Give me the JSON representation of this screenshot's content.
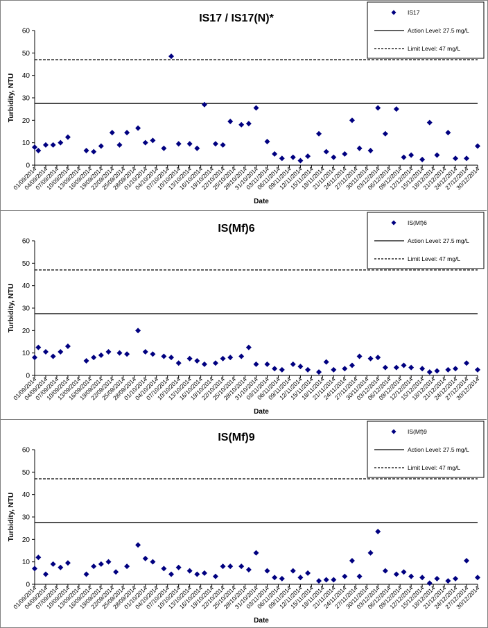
{
  "chart_data": [
    {
      "type": "scatter",
      "title": "IS17 / IS17(N)*",
      "xlabel": "Date",
      "ylabel": "Turbidity, NTU",
      "ylim": [
        0,
        60
      ],
      "yticks": [
        0,
        10,
        20,
        30,
        40,
        50,
        60
      ],
      "xlim": [
        "01/09/2014",
        "30/12/2014"
      ],
      "xticks": [
        "01/09/2014",
        "04/09/2014",
        "07/09/2014",
        "10/09/2014",
        "13/09/2014",
        "16/09/2014",
        "19/09/2014",
        "22/09/2014",
        "25/09/2014",
        "28/09/2014",
        "01/10/2014",
        "04/10/2014",
        "07/10/2014",
        "10/10/2014",
        "13/10/2014",
        "16/10/2014",
        "19/10/2014",
        "22/10/2014",
        "25/10/2014",
        "28/10/2014",
        "31/10/2014",
        "03/11/2014",
        "06/11/2014",
        "09/11/2014",
        "12/11/2014",
        "15/11/2014",
        "18/11/2014",
        "21/11/2014",
        "24/11/2014",
        "27/11/2014",
        "30/11/2014",
        "03/12/2014",
        "06/12/2014",
        "09/12/2014",
        "12/12/2014",
        "15/12/2014",
        "18/12/2014",
        "21/12/2014",
        "24/12/2014",
        "27/12/2014",
        "30/12/2014"
      ],
      "grid": false,
      "legend_position": "top-right",
      "series": [
        {
          "name": "IS17",
          "marker": "diamond",
          "color": "#000080",
          "points": [
            [
              "01/09/2014",
              8
            ],
            [
              "02/09/2014",
              6.5
            ],
            [
              "04/09/2014",
              9
            ],
            [
              "06/09/2014",
              9
            ],
            [
              "08/09/2014",
              10
            ],
            [
              "10/09/2014",
              12.5
            ],
            [
              "15/09/2014",
              6.5
            ],
            [
              "17/09/2014",
              6
            ],
            [
              "19/09/2014",
              8.5
            ],
            [
              "22/09/2014",
              14.5
            ],
            [
              "24/09/2014",
              9
            ],
            [
              "26/09/2014",
              14.5
            ],
            [
              "29/09/2014",
              16.5
            ],
            [
              "01/10/2014",
              10
            ],
            [
              "03/10/2014",
              11
            ],
            [
              "06/10/2014",
              7.5
            ],
            [
              "08/10/2014",
              48.5
            ],
            [
              "10/10/2014",
              9.5
            ],
            [
              "13/10/2014",
              9.5
            ],
            [
              "15/10/2014",
              7.5
            ],
            [
              "17/10/2014",
              27
            ],
            [
              "20/10/2014",
              9.5
            ],
            [
              "22/10/2014",
              9
            ],
            [
              "24/10/2014",
              19.5
            ],
            [
              "27/10/2014",
              18
            ],
            [
              "29/10/2014",
              18.5
            ],
            [
              "31/10/2014",
              25.5
            ],
            [
              "03/11/2014",
              10.5
            ],
            [
              "05/11/2014",
              5
            ],
            [
              "07/11/2014",
              3
            ],
            [
              "10/11/2014",
              3.5
            ],
            [
              "12/11/2014",
              2
            ],
            [
              "14/11/2014",
              4
            ],
            [
              "17/11/2014",
              14
            ],
            [
              "19/11/2014",
              6
            ],
            [
              "21/11/2014",
              3.5
            ],
            [
              "24/11/2014",
              5
            ],
            [
              "26/11/2014",
              20
            ],
            [
              "28/11/2014",
              7.5
            ],
            [
              "01/12/2014",
              6.5
            ],
            [
              "03/12/2014",
              25.5
            ],
            [
              "05/12/2014",
              14
            ],
            [
              "08/12/2014",
              25
            ],
            [
              "10/12/2014",
              3.5
            ],
            [
              "12/12/2014",
              4.5
            ],
            [
              "15/12/2014",
              2.5
            ],
            [
              "17/12/2014",
              19
            ],
            [
              "19/12/2014",
              4.5
            ],
            [
              "22/12/2014",
              14.5
            ],
            [
              "24/12/2014",
              3
            ],
            [
              "27/12/2014",
              3
            ],
            [
              "30/12/2014",
              8.5
            ]
          ]
        },
        {
          "name": "Action Level: 27.5 mg/L",
          "type": "hline",
          "value": 27.5,
          "style": "solid"
        },
        {
          "name": "Limit Level: 47 mg/L",
          "type": "hline",
          "value": 47,
          "style": "dashed"
        }
      ]
    },
    {
      "type": "scatter",
      "title": "IS(Mf)6",
      "xlabel": "Date",
      "ylabel": "Turbidity, NTU",
      "ylim": [
        0,
        60
      ],
      "yticks": [
        0,
        10,
        20,
        30,
        40,
        50,
        60
      ],
      "xlim": [
        "01/09/2014",
        "30/12/2014"
      ],
      "xticks": [
        "01/09/2014",
        "04/09/2014",
        "07/09/2014",
        "10/09/2014",
        "13/09/2014",
        "16/09/2014",
        "19/09/2014",
        "22/09/2014",
        "25/09/2014",
        "28/09/2014",
        "01/10/2014",
        "04/10/2014",
        "07/10/2014",
        "10/10/2014",
        "13/10/2014",
        "16/10/2014",
        "19/10/2014",
        "22/10/2014",
        "25/10/2014",
        "28/10/2014",
        "31/10/2014",
        "03/11/2014",
        "06/11/2014",
        "09/11/2014",
        "12/11/2014",
        "15/11/2014",
        "18/11/2014",
        "21/11/2014",
        "24/11/2014",
        "27/11/2014",
        "30/11/2014",
        "03/12/2014",
        "06/12/2014",
        "09/12/2014",
        "12/12/2014",
        "15/12/2014",
        "18/12/2014",
        "21/12/2014",
        "24/12/2014",
        "27/12/2014",
        "30/12/2014"
      ],
      "grid": false,
      "legend_position": "top-right",
      "series": [
        {
          "name": "IS(Mf)6",
          "marker": "diamond",
          "color": "#000080",
          "points": [
            [
              "01/09/2014",
              8
            ],
            [
              "02/09/2014",
              12.5
            ],
            [
              "04/09/2014",
              10.5
            ],
            [
              "06/09/2014",
              8.5
            ],
            [
              "08/09/2014",
              10.5
            ],
            [
              "10/09/2014",
              13
            ],
            [
              "15/09/2014",
              6.5
            ],
            [
              "17/09/2014",
              8
            ],
            [
              "19/09/2014",
              9
            ],
            [
              "21/09/2014",
              10.5
            ],
            [
              "24/09/2014",
              10
            ],
            [
              "26/09/2014",
              9.5
            ],
            [
              "29/09/2014",
              20
            ],
            [
              "01/10/2014",
              10.5
            ],
            [
              "03/10/2014",
              9.5
            ],
            [
              "06/10/2014",
              8.5
            ],
            [
              "08/10/2014",
              8
            ],
            [
              "10/10/2014",
              5.5
            ],
            [
              "13/10/2014",
              7.5
            ],
            [
              "15/10/2014",
              6.5
            ],
            [
              "17/10/2014",
              5
            ],
            [
              "20/10/2014",
              5.5
            ],
            [
              "22/10/2014",
              7.5
            ],
            [
              "24/10/2014",
              8
            ],
            [
              "27/10/2014",
              8.5
            ],
            [
              "29/10/2014",
              12.5
            ],
            [
              "31/10/2014",
              5
            ],
            [
              "03/11/2014",
              5
            ],
            [
              "05/11/2014",
              3
            ],
            [
              "07/11/2014",
              2.5
            ],
            [
              "10/11/2014",
              5
            ],
            [
              "12/11/2014",
              4
            ],
            [
              "14/11/2014",
              2.5
            ],
            [
              "17/11/2014",
              1.5
            ],
            [
              "19/11/2014",
              6
            ],
            [
              "21/11/2014",
              2.5
            ],
            [
              "24/11/2014",
              3
            ],
            [
              "26/11/2014",
              4.5
            ],
            [
              "28/11/2014",
              8.5
            ],
            [
              "01/12/2014",
              7.5
            ],
            [
              "03/12/2014",
              8
            ],
            [
              "05/12/2014",
              3.5
            ],
            [
              "08/12/2014",
              3.5
            ],
            [
              "10/12/2014",
              4.5
            ],
            [
              "12/12/2014",
              3.5
            ],
            [
              "15/12/2014",
              3
            ],
            [
              "17/12/2014",
              1.5
            ],
            [
              "19/12/2014",
              2
            ],
            [
              "22/12/2014",
              2.5
            ],
            [
              "24/12/2014",
              3
            ],
            [
              "27/12/2014",
              5.5
            ],
            [
              "30/12/2014",
              2.5
            ]
          ]
        },
        {
          "name": "Action Level: 27.5 mg/L",
          "type": "hline",
          "value": 27.5,
          "style": "solid"
        },
        {
          "name": "Limit Level: 47 mg/L",
          "type": "hline",
          "value": 47,
          "style": "dashed"
        }
      ]
    },
    {
      "type": "scatter",
      "title": "IS(Mf)9",
      "xlabel": "Date",
      "ylabel": "Turbidity, NTU",
      "ylim": [
        0,
        60
      ],
      "yticks": [
        0,
        10,
        20,
        30,
        40,
        50,
        60
      ],
      "xlim": [
        "01/09/2014",
        "30/12/2014"
      ],
      "xticks": [
        "01/09/2014",
        "04/09/2014",
        "07/09/2014",
        "10/09/2014",
        "13/09/2014",
        "16/09/2014",
        "19/09/2014",
        "22/09/2014",
        "25/09/2014",
        "28/09/2014",
        "01/10/2014",
        "04/10/2014",
        "07/10/2014",
        "10/10/2014",
        "13/10/2014",
        "16/10/2014",
        "19/10/2014",
        "22/10/2014",
        "25/10/2014",
        "28/10/2014",
        "31/10/2014",
        "03/11/2014",
        "06/11/2014",
        "09/11/2014",
        "12/11/2014",
        "15/11/2014",
        "18/11/2014",
        "21/11/2014",
        "24/11/2014",
        "27/11/2014",
        "30/11/2014",
        "03/12/2014",
        "06/12/2014",
        "09/12/2014",
        "12/12/2014",
        "15/12/2014",
        "18/12/2014",
        "21/12/2014",
        "24/12/2014",
        "27/12/2014",
        "30/12/2014"
      ],
      "grid": false,
      "legend_position": "top-right",
      "series": [
        {
          "name": "IS(Mf)9",
          "marker": "diamond",
          "color": "#000080",
          "points": [
            [
              "01/09/2014",
              7
            ],
            [
              "02/09/2014",
              12
            ],
            [
              "04/09/2014",
              4.5
            ],
            [
              "06/09/2014",
              9
            ],
            [
              "08/09/2014",
              7.5
            ],
            [
              "10/09/2014",
              9.5
            ],
            [
              "15/09/2014",
              4.5
            ],
            [
              "17/09/2014",
              8
            ],
            [
              "19/09/2014",
              9
            ],
            [
              "21/09/2014",
              10
            ],
            [
              "23/09/2014",
              5.5
            ],
            [
              "26/09/2014",
              8
            ],
            [
              "29/09/2014",
              17.5
            ],
            [
              "01/10/2014",
              11.5
            ],
            [
              "03/10/2014",
              10
            ],
            [
              "06/10/2014",
              7
            ],
            [
              "08/10/2014",
              4.5
            ],
            [
              "10/10/2014",
              7.5
            ],
            [
              "13/10/2014",
              6
            ],
            [
              "15/10/2014",
              4.5
            ],
            [
              "17/10/2014",
              5
            ],
            [
              "20/10/2014",
              3.5
            ],
            [
              "22/10/2014",
              8
            ],
            [
              "24/10/2014",
              8
            ],
            [
              "27/10/2014",
              8
            ],
            [
              "29/10/2014",
              6.5
            ],
            [
              "31/10/2014",
              14
            ],
            [
              "03/11/2014",
              6
            ],
            [
              "05/11/2014",
              3
            ],
            [
              "07/11/2014",
              2.5
            ],
            [
              "10/11/2014",
              6
            ],
            [
              "12/11/2014",
              3
            ],
            [
              "14/11/2014",
              5
            ],
            [
              "17/11/2014",
              1.5
            ],
            [
              "19/11/2014",
              2
            ],
            [
              "21/11/2014",
              2
            ],
            [
              "24/11/2014",
              3.5
            ],
            [
              "26/11/2014",
              10.5
            ],
            [
              "28/11/2014",
              3.5
            ],
            [
              "01/12/2014",
              14
            ],
            [
              "03/12/2014",
              23.5
            ],
            [
              "05/12/2014",
              6
            ],
            [
              "08/12/2014",
              4.5
            ],
            [
              "10/12/2014",
              5.5
            ],
            [
              "12/12/2014",
              3.5
            ],
            [
              "15/12/2014",
              3
            ],
            [
              "17/12/2014",
              0.5
            ],
            [
              "19/12/2014",
              2.5
            ],
            [
              "22/12/2014",
              1.5
            ],
            [
              "24/12/2014",
              2.5
            ],
            [
              "27/12/2014",
              10.5
            ],
            [
              "30/12/2014",
              3
            ]
          ]
        },
        {
          "name": "Action Level: 27.5 mg/L",
          "type": "hline",
          "value": 27.5,
          "style": "solid"
        },
        {
          "name": "Limit Level: 47 mg/L",
          "type": "hline",
          "value": 47,
          "style": "dashed"
        }
      ]
    }
  ]
}
